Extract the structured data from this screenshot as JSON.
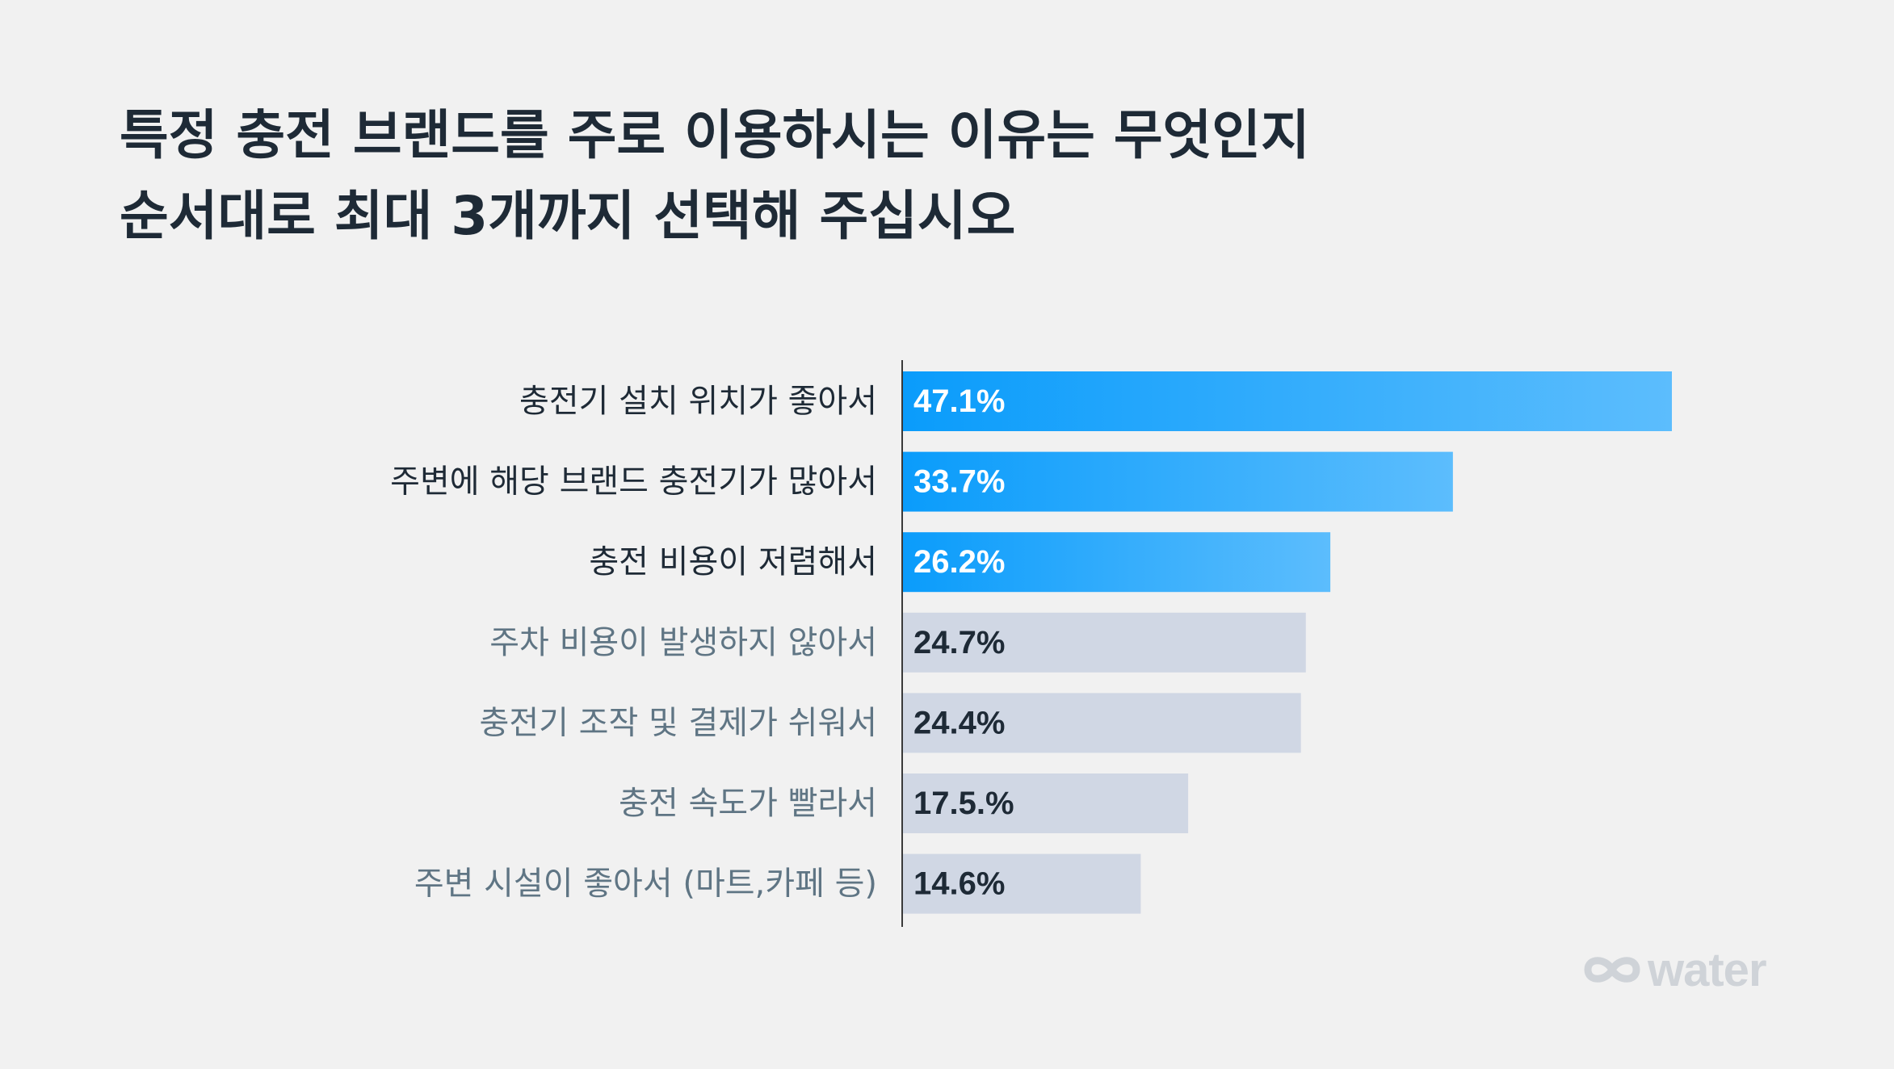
{
  "title": {
    "line1": "특정 충전 브랜드를 주로 이용하시는 이유는 무엇인지",
    "line2": "순서대로 최대 3개까지 선택해 주십시오"
  },
  "chart_data": {
    "type": "bar",
    "orientation": "horizontal",
    "categories": [
      "충전기 설치 위치가 좋아서",
      "주변에 해당 브랜드 충전기가 많아서",
      "충전 비용이 저렴해서",
      "주차 비용이 발생하지 않아서",
      "충전기 조작 및 결제가 쉬워서",
      "충전 속도가 빨라서",
      "주변 시설이 좋아서 (마트,카페 등)"
    ],
    "values": [
      47.1,
      33.7,
      26.2,
      24.7,
      24.4,
      17.5,
      14.6
    ],
    "value_labels": [
      "47.1%",
      "33.7%",
      "26.2%",
      "24.7%",
      "24.4%",
      "17.5.%",
      "14.6%"
    ],
    "highlighted": [
      true,
      true,
      true,
      false,
      false,
      false,
      false
    ],
    "xlim": [
      0,
      47.1
    ],
    "grid": false,
    "colors": {
      "highlight_start": "#0a9cfb",
      "highlight_end": "#5cbdfd",
      "muted": "#d0d7e4",
      "label_dark": "#1e2a36",
      "label_muted": "#5f7584",
      "value_light": "#ffffff",
      "value_dark": "#1e2a36",
      "axis": "#3a3a3a"
    }
  },
  "logo": {
    "text": "water",
    "icon": "infinity-loop-icon",
    "color": "#cfd3d8"
  }
}
